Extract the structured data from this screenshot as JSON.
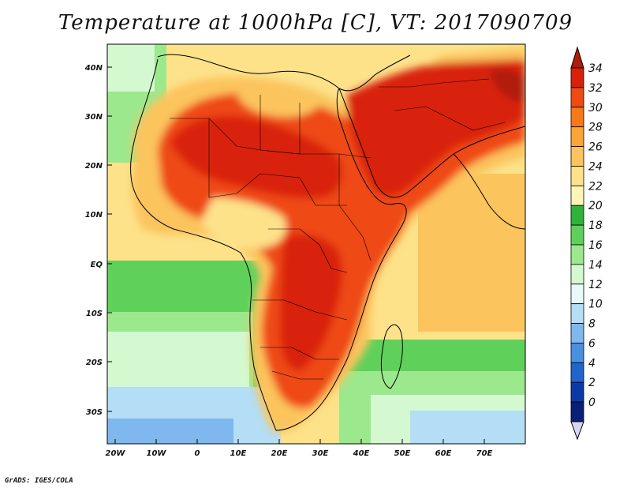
{
  "title": "Temperature at 1000hPa [C], VT: 2017090709",
  "credit": "GrADS: IGES/COLA",
  "map": {
    "lat_labels": [
      "40N",
      "30N",
      "20N",
      "10N",
      "EQ",
      "10S",
      "20S",
      "30S"
    ],
    "lon_labels": [
      "20W",
      "10W",
      "0",
      "10E",
      "20E",
      "30E",
      "40E",
      "50E",
      "60E",
      "70E"
    ]
  },
  "colorbar": {
    "labels": [
      "34",
      "32",
      "30",
      "28",
      "26",
      "24",
      "22",
      "20",
      "18",
      "16",
      "14",
      "12",
      "10",
      "8",
      "6",
      "4",
      "2",
      "0"
    ],
    "colors": [
      "#d9200a",
      "#ef4a14",
      "#f77814",
      "#f9a435",
      "#fbc45d",
      "#fde28a",
      "#fff5b5",
      "#2fb33a",
      "#5fd15a",
      "#9ce88c",
      "#d4f8d0",
      "#e6fafb",
      "#b3def5",
      "#7fb8ee",
      "#4a90e0",
      "#2065cc",
      "#0b3aa8",
      "#0a1f7a"
    ],
    "over_color": "#b01c08",
    "under_color": "#d8d6f4"
  },
  "legend_colors": {
    "ocean_cool": "#d4f8d0",
    "ocean_mild": "#9ce88c",
    "ocean_warm": "#fde28a",
    "land_hot": "#ef4a14",
    "land_hottest": "#d9200a",
    "far_south": "#7fb8ee"
  }
}
